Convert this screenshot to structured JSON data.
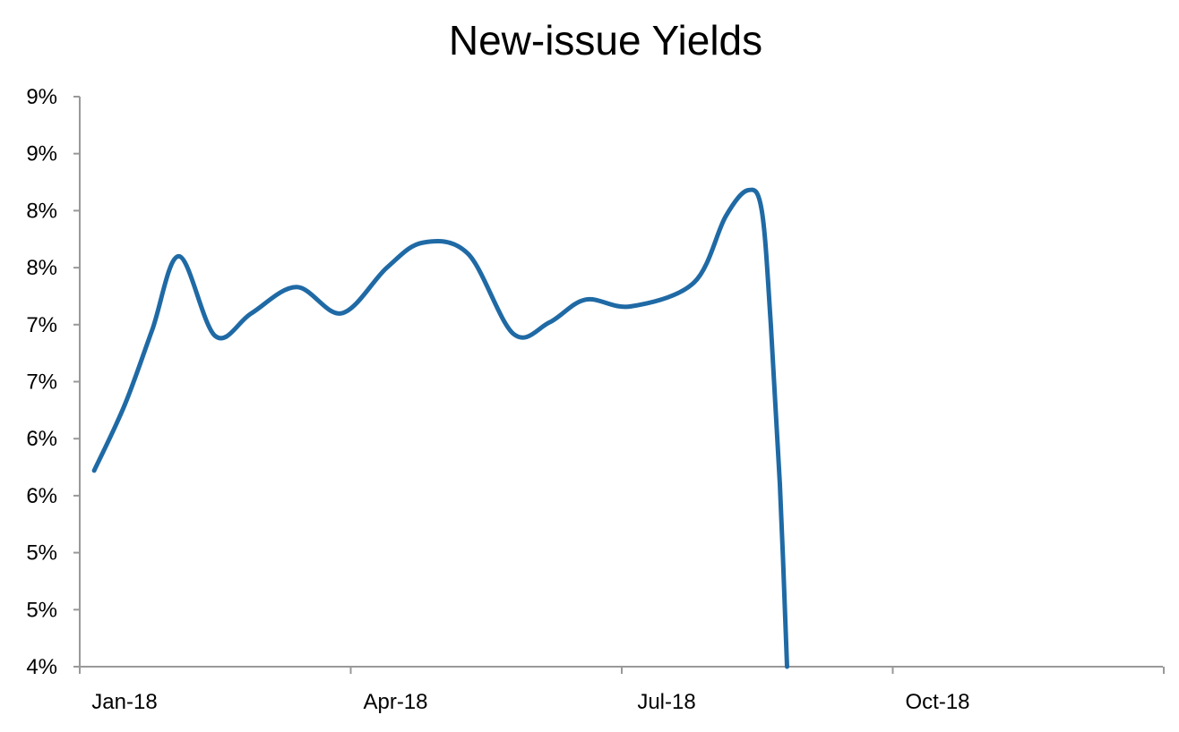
{
  "chart_data": {
    "type": "line",
    "title": "New-issue Yields",
    "xlabel": "",
    "ylabel": "",
    "x_tick_labels": [
      "Jan-18",
      "Apr-18",
      "Jul-18",
      "Oct-18"
    ],
    "y_tick_labels": [
      "4%",
      "5%",
      "5%",
      "6%",
      "6%",
      "7%",
      "7%",
      "8%",
      "8%",
      "9%",
      "9%"
    ],
    "ylim": [
      4.0,
      9.0
    ],
    "xlim_months": [
      0,
      12
    ],
    "grid": false,
    "legend": "none",
    "series": [
      {
        "color": "#1f6aa5",
        "points": [
          {
            "x": 0.16,
            "y": 5.72
          },
          {
            "x": 0.5,
            "y": 6.3
          },
          {
            "x": 0.8,
            "y": 6.95
          },
          {
            "x": 1.1,
            "y": 7.6
          },
          {
            "x": 1.5,
            "y": 6.9
          },
          {
            "x": 1.9,
            "y": 7.1
          },
          {
            "x": 2.4,
            "y": 7.33
          },
          {
            "x": 2.9,
            "y": 7.1
          },
          {
            "x": 3.4,
            "y": 7.5
          },
          {
            "x": 3.8,
            "y": 7.72
          },
          {
            "x": 4.3,
            "y": 7.62
          },
          {
            "x": 4.8,
            "y": 6.92
          },
          {
            "x": 5.2,
            "y": 7.02
          },
          {
            "x": 5.6,
            "y": 7.22
          },
          {
            "x": 6.1,
            "y": 7.16
          },
          {
            "x": 6.8,
            "y": 7.37
          },
          {
            "x": 7.15,
            "y": 7.95
          },
          {
            "x": 7.4,
            "y": 8.18
          },
          {
            "x": 7.55,
            "y": 8.0
          },
          {
            "x": 7.65,
            "y": 7.0
          },
          {
            "x": 7.75,
            "y": 5.6
          },
          {
            "x": 7.83,
            "y": 4.0
          }
        ]
      }
    ]
  },
  "colors": {
    "line": "#1f6aa5",
    "axis": "#999999",
    "text": "#000000"
  }
}
